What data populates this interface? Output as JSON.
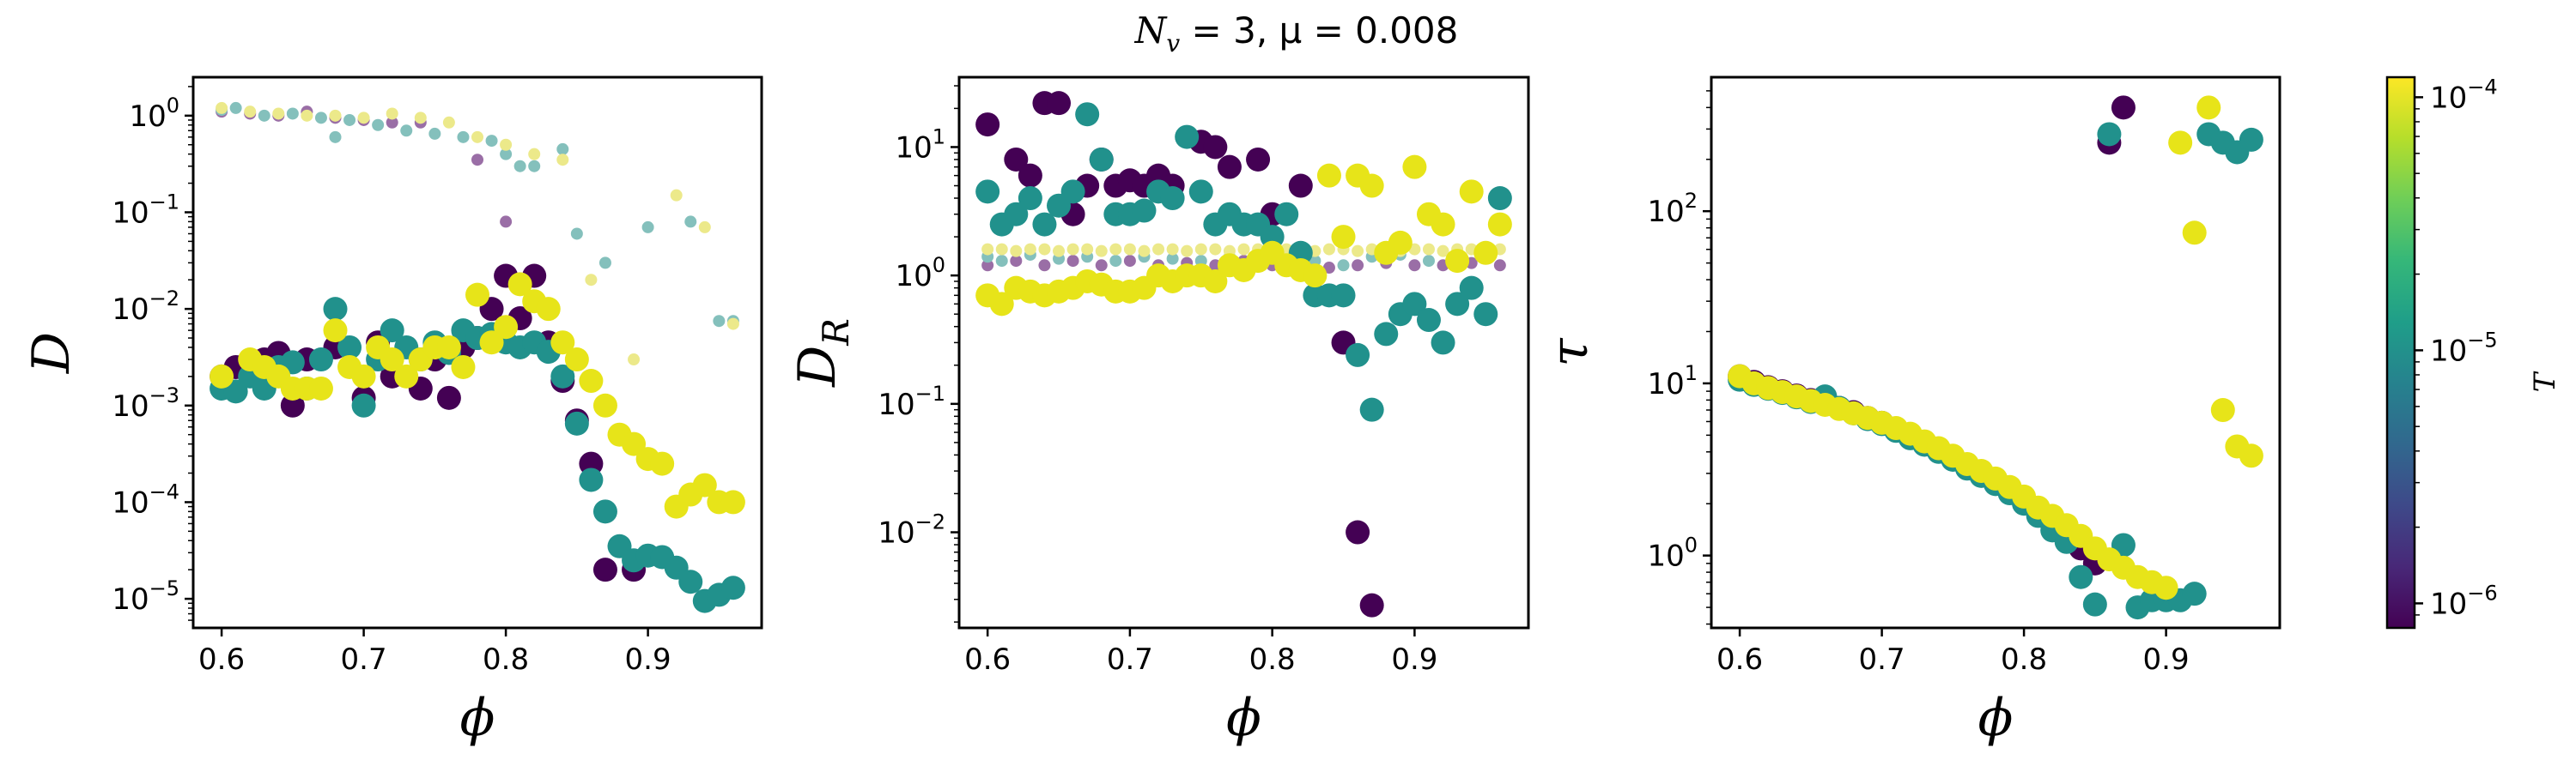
{
  "figure": {
    "title": "N_v = 3, μ = 0.008",
    "title_parts": {
      "n": "N",
      "sub": "v",
      "rest": " = 3, μ = 0.008"
    }
  },
  "colors": {
    "T_1e-6": "#440154",
    "T_1e-5": "#21918c",
    "T_1e-4": "#e7e419",
    "faint_1e-6": "#9a6ea6",
    "faint_1e-5": "#84c0bc",
    "faint_1e-4": "#ece98a"
  },
  "colorbar": {
    "label": "T",
    "scale": "log",
    "range": [
      8e-07,
      0.00012
    ],
    "ticks": [
      {
        "mant": "10",
        "exp": "−6"
      },
      {
        "mant": "10",
        "exp": "−5"
      },
      {
        "mant": "10",
        "exp": "−4"
      }
    ]
  },
  "chart_data": [
    {
      "type": "scatter",
      "xlabel": "ϕ",
      "ylabel": "D",
      "yscale": "log",
      "xlim": [
        0.58,
        0.98
      ],
      "ylim": [
        5e-06,
        2.5
      ],
      "xticks": [
        "0.6",
        "0.7",
        "0.8",
        "0.9"
      ],
      "yticks": [
        {
          "mant": "10",
          "exp": "0"
        },
        {
          "mant": "10",
          "exp": "−1"
        },
        {
          "mant": "10",
          "exp": "−2"
        },
        {
          "mant": "10",
          "exp": "−3"
        },
        {
          "mant": "10",
          "exp": "−4"
        },
        {
          "mant": "10",
          "exp": "−5"
        }
      ],
      "series": [
        {
          "T": "1e-6",
          "style": "large",
          "x": [
            0.6,
            0.61,
            0.63,
            0.64,
            0.65,
            0.66,
            0.68,
            0.7,
            0.71,
            0.72,
            0.74,
            0.75,
            0.76,
            0.77,
            0.78,
            0.79,
            0.8,
            0.81,
            0.82,
            0.83,
            0.84,
            0.85,
            0.86,
            0.87,
            0.89
          ],
          "y": [
            0.002,
            0.0025,
            0.003,
            0.0035,
            0.001,
            0.003,
            0.004,
            0.0012,
            0.0045,
            0.002,
            0.0015,
            0.003,
            0.0012,
            0.004,
            0.005,
            0.01,
            0.022,
            0.008,
            0.022,
            0.0045,
            0.0018,
            0.0007,
            0.00025,
            2e-05,
            2e-05
          ]
        },
        {
          "T": "1e-5",
          "style": "large",
          "x": [
            0.6,
            0.61,
            0.62,
            0.63,
            0.64,
            0.65,
            0.66,
            0.67,
            0.68,
            0.69,
            0.7,
            0.71,
            0.72,
            0.73,
            0.74,
            0.75,
            0.76,
            0.77,
            0.78,
            0.79,
            0.8,
            0.81,
            0.82,
            0.83,
            0.84,
            0.85,
            0.86,
            0.87,
            0.88,
            0.89,
            0.9,
            0.91,
            0.92,
            0.93,
            0.94,
            0.95,
            0.96
          ],
          "y": [
            0.0015,
            0.0014,
            0.002,
            0.0015,
            0.0025,
            0.0028,
            0.0015,
            0.003,
            0.01,
            0.004,
            0.001,
            0.003,
            0.006,
            0.004,
            0.003,
            0.0045,
            0.0035,
            0.006,
            0.005,
            0.0055,
            0.0045,
            0.004,
            0.0045,
            0.0036,
            0.002,
            0.00065,
            0.00017,
            8e-05,
            3.5e-05,
            2.5e-05,
            2.8e-05,
            2.7e-05,
            2.1e-05,
            1.5e-05,
            9.5e-06,
            1.1e-05,
            1.3e-05
          ]
        },
        {
          "T": "1e-4",
          "style": "large",
          "x": [
            0.6,
            0.62,
            0.63,
            0.64,
            0.65,
            0.66,
            0.67,
            0.68,
            0.69,
            0.7,
            0.71,
            0.72,
            0.73,
            0.74,
            0.75,
            0.76,
            0.77,
            0.78,
            0.79,
            0.8,
            0.81,
            0.82,
            0.83,
            0.84,
            0.85,
            0.86,
            0.87,
            0.88,
            0.89,
            0.9,
            0.91,
            0.92,
            0.93,
            0.94,
            0.95,
            0.96
          ],
          "y": [
            0.002,
            0.003,
            0.0025,
            0.002,
            0.0015,
            0.0015,
            0.0015,
            0.006,
            0.0025,
            0.002,
            0.004,
            0.003,
            0.002,
            0.003,
            0.004,
            0.004,
            0.0025,
            0.014,
            0.0045,
            0.0065,
            0.018,
            0.012,
            0.01,
            0.0045,
            0.003,
            0.0018,
            0.001,
            0.0005,
            0.0004,
            0.00028,
            0.00025,
            9e-05,
            0.00012,
            0.00015,
            0.0001,
            0.0001
          ]
        },
        {
          "T": "1e-6",
          "style": "small",
          "x": [
            0.6,
            0.62,
            0.64,
            0.66,
            0.68,
            0.7,
            0.72,
            0.74,
            0.78,
            0.8,
            0.82
          ],
          "y": [
            1.1,
            1.05,
            1.0,
            1.1,
            0.95,
            0.9,
            0.85,
            0.85,
            0.35,
            0.08,
            0.02
          ]
        },
        {
          "T": "1e-5",
          "style": "small",
          "x": [
            0.6,
            0.61,
            0.63,
            0.65,
            0.67,
            0.68,
            0.69,
            0.71,
            0.73,
            0.75,
            0.77,
            0.79,
            0.8,
            0.81,
            0.82,
            0.84,
            0.85,
            0.87,
            0.9,
            0.93,
            0.95,
            0.96
          ],
          "y": [
            1.15,
            1.2,
            1.0,
            1.05,
            0.95,
            0.6,
            0.9,
            0.8,
            0.7,
            0.65,
            0.6,
            0.55,
            0.4,
            0.3,
            0.3,
            0.45,
            0.06,
            0.03,
            0.07,
            0.08,
            0.0075,
            0.0075
          ]
        },
        {
          "T": "1e-4",
          "style": "small",
          "x": [
            0.6,
            0.62,
            0.64,
            0.66,
            0.68,
            0.7,
            0.72,
            0.74,
            0.76,
            0.78,
            0.8,
            0.82,
            0.84,
            0.86,
            0.89,
            0.92,
            0.94,
            0.96
          ],
          "y": [
            1.2,
            1.1,
            1.05,
            1.0,
            1.0,
            0.95,
            1.05,
            0.95,
            0.85,
            0.6,
            0.5,
            0.4,
            0.35,
            0.02,
            0.003,
            0.15,
            0.07,
            0.007
          ]
        }
      ]
    },
    {
      "type": "scatter",
      "xlabel": "ϕ",
      "ylabel": "D_R",
      "yscale": "log",
      "xlim": [
        0.58,
        0.98
      ],
      "ylim": [
        0.0018,
        35
      ],
      "xticks": [
        "0.6",
        "0.7",
        "0.8",
        "0.9"
      ],
      "yticks": [
        {
          "mant": "10",
          "exp": "1"
        },
        {
          "mant": "10",
          "exp": "0"
        },
        {
          "mant": "10",
          "exp": "−1"
        },
        {
          "mant": "10",
          "exp": "−2"
        }
      ],
      "series": [
        {
          "T": "1e-6",
          "style": "large",
          "x": [
            0.6,
            0.62,
            0.63,
            0.64,
            0.65,
            0.66,
            0.67,
            0.68,
            0.69,
            0.7,
            0.71,
            0.72,
            0.73,
            0.75,
            0.76,
            0.77,
            0.79,
            0.8,
            0.82,
            0.85,
            0.86,
            0.87
          ],
          "y": [
            15,
            8,
            6,
            22,
            22,
            3,
            5,
            8,
            5,
            5.5,
            5,
            6,
            5,
            11,
            10,
            7,
            8,
            3,
            5,
            0.3,
            0.01,
            0.0027
          ]
        },
        {
          "T": "1e-5",
          "style": "large",
          "x": [
            0.6,
            0.61,
            0.62,
            0.63,
            0.64,
            0.65,
            0.66,
            0.67,
            0.68,
            0.69,
            0.7,
            0.71,
            0.72,
            0.73,
            0.74,
            0.75,
            0.76,
            0.77,
            0.78,
            0.79,
            0.8,
            0.81,
            0.82,
            0.83,
            0.84,
            0.85,
            0.86,
            0.87,
            0.88,
            0.89,
            0.9,
            0.91,
            0.92,
            0.93,
            0.94,
            0.95,
            0.96
          ],
          "y": [
            4.5,
            2.5,
            3,
            4,
            2.5,
            3.5,
            4.5,
            18,
            8,
            3,
            3,
            3.2,
            4.5,
            4,
            12,
            4.5,
            2.5,
            3,
            2.5,
            2.5,
            2,
            3,
            1.5,
            0.7,
            0.7,
            0.7,
            0.24,
            0.09,
            0.35,
            0.5,
            0.6,
            0.45,
            0.3,
            0.6,
            0.8,
            0.5,
            4
          ]
        },
        {
          "T": "1e-4",
          "style": "large",
          "x": [
            0.6,
            0.61,
            0.62,
            0.63,
            0.64,
            0.65,
            0.66,
            0.67,
            0.68,
            0.69,
            0.7,
            0.71,
            0.72,
            0.73,
            0.74,
            0.75,
            0.76,
            0.77,
            0.78,
            0.79,
            0.8,
            0.81,
            0.82,
            0.83,
            0.84,
            0.85,
            0.86,
            0.87,
            0.88,
            0.89,
            0.9,
            0.91,
            0.92,
            0.93,
            0.94,
            0.95,
            0.96
          ],
          "y": [
            0.7,
            0.6,
            0.8,
            0.75,
            0.7,
            0.75,
            0.8,
            0.9,
            0.85,
            0.75,
            0.75,
            0.8,
            1.0,
            0.9,
            1.0,
            1.0,
            0.9,
            1.2,
            1.1,
            1.3,
            1.5,
            1.2,
            1.1,
            1.0,
            6,
            2,
            6,
            5,
            1.5,
            1.8,
            7,
            3,
            2.5,
            1.3,
            4.5,
            1.5,
            2.5
          ]
        },
        {
          "T": "1e-6",
          "style": "small",
          "x": [
            0.6,
            0.62,
            0.64,
            0.66,
            0.68,
            0.7,
            0.72,
            0.74,
            0.76,
            0.78,
            0.8,
            0.82,
            0.84,
            0.86,
            0.88,
            0.9,
            0.92,
            0.94,
            0.96
          ],
          "y": [
            1.2,
            1.3,
            1.2,
            1.3,
            1.2,
            1.3,
            1.2,
            1.25,
            1.2,
            1.3,
            1.2,
            1.2,
            1.15,
            1.2,
            1.25,
            1.2,
            1.2,
            1.25,
            1.2
          ]
        },
        {
          "T": "1e-5",
          "style": "small",
          "x": [
            0.6,
            0.61,
            0.63,
            0.65,
            0.67,
            0.69,
            0.71,
            0.73,
            0.75,
            0.77,
            0.79,
            0.81,
            0.83,
            0.85,
            0.87,
            0.89,
            0.91,
            0.93,
            0.95
          ],
          "y": [
            1.4,
            1.3,
            1.45,
            1.35,
            1.4,
            1.3,
            1.4,
            1.35,
            1.3,
            1.4,
            1.3,
            1.35,
            1.3,
            1.2,
            1.4,
            1.45,
            1.3,
            1.5,
            1.4
          ]
        },
        {
          "T": "1e-4",
          "style": "small",
          "x": [
            0.6,
            0.61,
            0.62,
            0.63,
            0.64,
            0.65,
            0.66,
            0.67,
            0.68,
            0.69,
            0.7,
            0.71,
            0.72,
            0.73,
            0.74,
            0.75,
            0.76,
            0.77,
            0.78,
            0.79,
            0.8,
            0.81,
            0.82,
            0.83,
            0.84,
            0.85,
            0.86,
            0.87,
            0.88,
            0.89,
            0.9,
            0.91,
            0.92,
            0.93,
            0.94,
            0.95,
            0.96
          ],
          "y": [
            1.6,
            1.6,
            1.55,
            1.6,
            1.6,
            1.55,
            1.6,
            1.6,
            1.55,
            1.6,
            1.6,
            1.55,
            1.6,
            1.6,
            1.55,
            1.6,
            1.6,
            1.55,
            1.6,
            1.6,
            1.55,
            1.6,
            1.6,
            1.55,
            1.6,
            1.6,
            1.55,
            1.6,
            1.6,
            1.55,
            1.6,
            1.6,
            1.55,
            1.6,
            1.6,
            1.55,
            1.6
          ]
        }
      ]
    },
    {
      "type": "scatter",
      "xlabel": "ϕ",
      "ylabel": "τ",
      "yscale": "log",
      "xlim": [
        0.58,
        0.98
      ],
      "ylim": [
        0.38,
        600
      ],
      "xticks": [
        "0.6",
        "0.7",
        "0.8",
        "0.9"
      ],
      "yticks": [
        {
          "mant": "10",
          "exp": "2"
        },
        {
          "mant": "10",
          "exp": "1"
        },
        {
          "mant": "10",
          "exp": "0"
        }
      ],
      "series": [
        {
          "T": "1e-6",
          "style": "large",
          "x": [
            0.6,
            0.61,
            0.62,
            0.63,
            0.64,
            0.65,
            0.66,
            0.67,
            0.68,
            0.69,
            0.7,
            0.71,
            0.72,
            0.73,
            0.74,
            0.75,
            0.76,
            0.77,
            0.78,
            0.79,
            0.8,
            0.81,
            0.82,
            0.83,
            0.84,
            0.85,
            0.86,
            0.87
          ],
          "y": [
            11,
            10.2,
            9.5,
            9,
            8.5,
            8,
            7.6,
            7.2,
            6.8,
            6.3,
            5.9,
            5.4,
            5.0,
            4.5,
            4.1,
            3.7,
            3.3,
            3.0,
            2.7,
            2.4,
            2.1,
            1.8,
            1.5,
            1.3,
            1.1,
            0.9,
            250,
            400
          ]
        },
        {
          "T": "1e-5",
          "style": "large",
          "x": [
            0.6,
            0.61,
            0.62,
            0.63,
            0.64,
            0.65,
            0.66,
            0.67,
            0.68,
            0.69,
            0.7,
            0.71,
            0.72,
            0.73,
            0.74,
            0.75,
            0.76,
            0.77,
            0.78,
            0.79,
            0.8,
            0.81,
            0.82,
            0.83,
            0.84,
            0.85,
            0.86,
            0.87,
            0.88,
            0.89,
            0.9,
            0.91,
            0.92,
            0.93,
            0.94,
            0.95,
            0.96
          ],
          "y": [
            10.5,
            9.8,
            9.3,
            8.8,
            8.3,
            7.8,
            8.4,
            7.2,
            6.7,
            6.2,
            5.8,
            5.3,
            4.8,
            4.4,
            4.0,
            3.6,
            3.2,
            2.9,
            2.6,
            2.3,
            2.0,
            1.7,
            1.4,
            1.2,
            0.75,
            0.52,
            280,
            1.15,
            0.5,
            0.55,
            0.55,
            0.55,
            0.6,
            280,
            250,
            220,
            260
          ]
        },
        {
          "T": "1e-4",
          "style": "large",
          "x": [
            0.6,
            0.61,
            0.62,
            0.63,
            0.64,
            0.65,
            0.66,
            0.67,
            0.68,
            0.69,
            0.7,
            0.71,
            0.72,
            0.73,
            0.74,
            0.75,
            0.76,
            0.77,
            0.78,
            0.79,
            0.8,
            0.81,
            0.82,
            0.83,
            0.84,
            0.85,
            0.86,
            0.87,
            0.88,
            0.89,
            0.9,
            0.91,
            0.92,
            0.93,
            0.94,
            0.95,
            0.96
          ],
          "y": [
            11,
            10,
            9.4,
            8.9,
            8.4,
            7.9,
            7.5,
            7.1,
            6.7,
            6.3,
            5.9,
            5.5,
            5.1,
            4.6,
            4.2,
            3.8,
            3.4,
            3.1,
            2.8,
            2.5,
            2.2,
            1.9,
            1.7,
            1.5,
            1.3,
            1.1,
            0.95,
            0.85,
            0.75,
            0.7,
            0.65,
            250,
            75,
            400,
            7,
            4.3,
            3.8
          ]
        }
      ]
    }
  ]
}
